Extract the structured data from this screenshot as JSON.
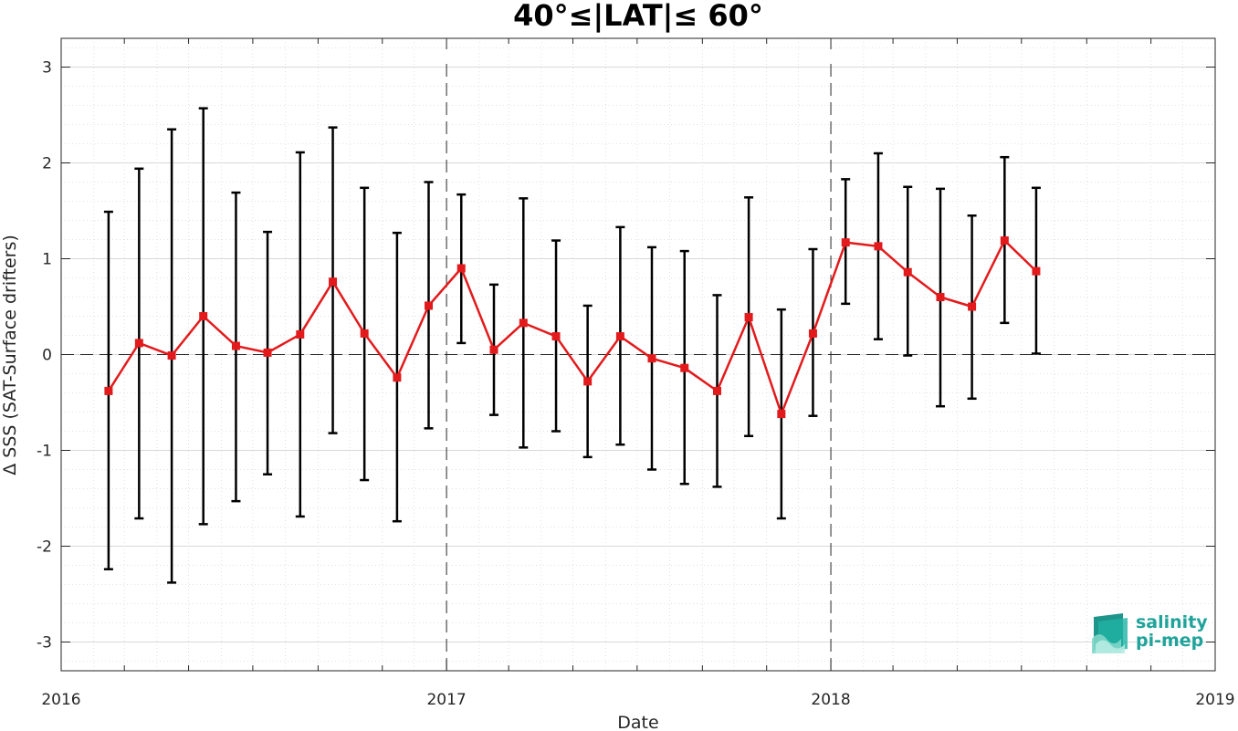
{
  "chart_data": {
    "type": "line",
    "title": "40°≤|LAT|≤ 60°",
    "xlabel": "Date",
    "ylabel": "Δ SSS (SAT-Surface drifters)",
    "xlim": [
      "2016-01-01",
      "2019-01-01"
    ],
    "ylim": [
      -3.3,
      3.3
    ],
    "x_ticks": [
      "2016",
      "2017",
      "2018",
      "2019"
    ],
    "y_ticks": [
      -3,
      -2,
      -1,
      0,
      1,
      2,
      3
    ],
    "y_tick_labels": [
      "-3",
      "-2",
      "-1",
      "0",
      "1",
      "2",
      "3"
    ],
    "grid": true,
    "reference_lines": {
      "horizontal": [
        0
      ],
      "vertical": [
        "2017-01-01",
        "2018-01-01"
      ]
    },
    "colors": {
      "series": "#e31a1c",
      "errorbar": "#000000",
      "grid": "#d9d9d9"
    },
    "series": [
      {
        "x": [
          "2016-02-15",
          "2016-03-15",
          "2016-04-15",
          "2016-05-15",
          "2016-06-15",
          "2016-07-15",
          "2016-08-15",
          "2016-09-15",
          "2016-10-15",
          "2016-11-15",
          "2016-12-15",
          "2017-01-15",
          "2017-02-15",
          "2017-03-15",
          "2017-04-15",
          "2017-05-15",
          "2017-06-15",
          "2017-07-15",
          "2017-08-15",
          "2017-09-15",
          "2017-10-15",
          "2017-11-15",
          "2017-12-15",
          "2018-01-15",
          "2018-02-15",
          "2018-03-15",
          "2018-04-15",
          "2018-05-15",
          "2018-06-15",
          "2018-07-15"
        ],
        "y": [
          -0.38,
          0.12,
          -0.01,
          0.4,
          0.09,
          0.02,
          0.21,
          0.76,
          0.22,
          -0.24,
          0.51,
          0.9,
          0.05,
          0.33,
          0.19,
          -0.28,
          0.19,
          -0.04,
          -0.14,
          -0.38,
          0.39,
          -0.62,
          0.22,
          1.17,
          1.13,
          0.86,
          0.6,
          0.5,
          1.19,
          0.87
        ],
        "err_low": [
          -2.24,
          -1.71,
          -2.38,
          -1.77,
          -1.53,
          -1.25,
          -1.69,
          -0.82,
          -1.31,
          -1.74,
          -0.77,
          0.12,
          -0.63,
          -0.97,
          -0.8,
          -1.07,
          -0.94,
          -1.2,
          -1.35,
          -1.38,
          -0.85,
          -1.71,
          -0.64,
          0.53,
          0.16,
          -0.01,
          -0.54,
          -0.46,
          0.33,
          0.01
        ],
        "err_high": [
          1.49,
          1.94,
          2.35,
          2.57,
          1.69,
          1.28,
          2.11,
          2.37,
          1.74,
          1.27,
          1.8,
          1.67,
          0.73,
          1.63,
          1.19,
          0.51,
          1.33,
          1.12,
          1.08,
          0.62,
          1.64,
          0.47,
          1.1,
          1.83,
          2.1,
          1.75,
          1.73,
          1.45,
          2.06,
          1.74
        ]
      }
    ]
  },
  "logo": {
    "line1": "salinity",
    "line2": "pi-mep",
    "color": "#1fa39a"
  }
}
